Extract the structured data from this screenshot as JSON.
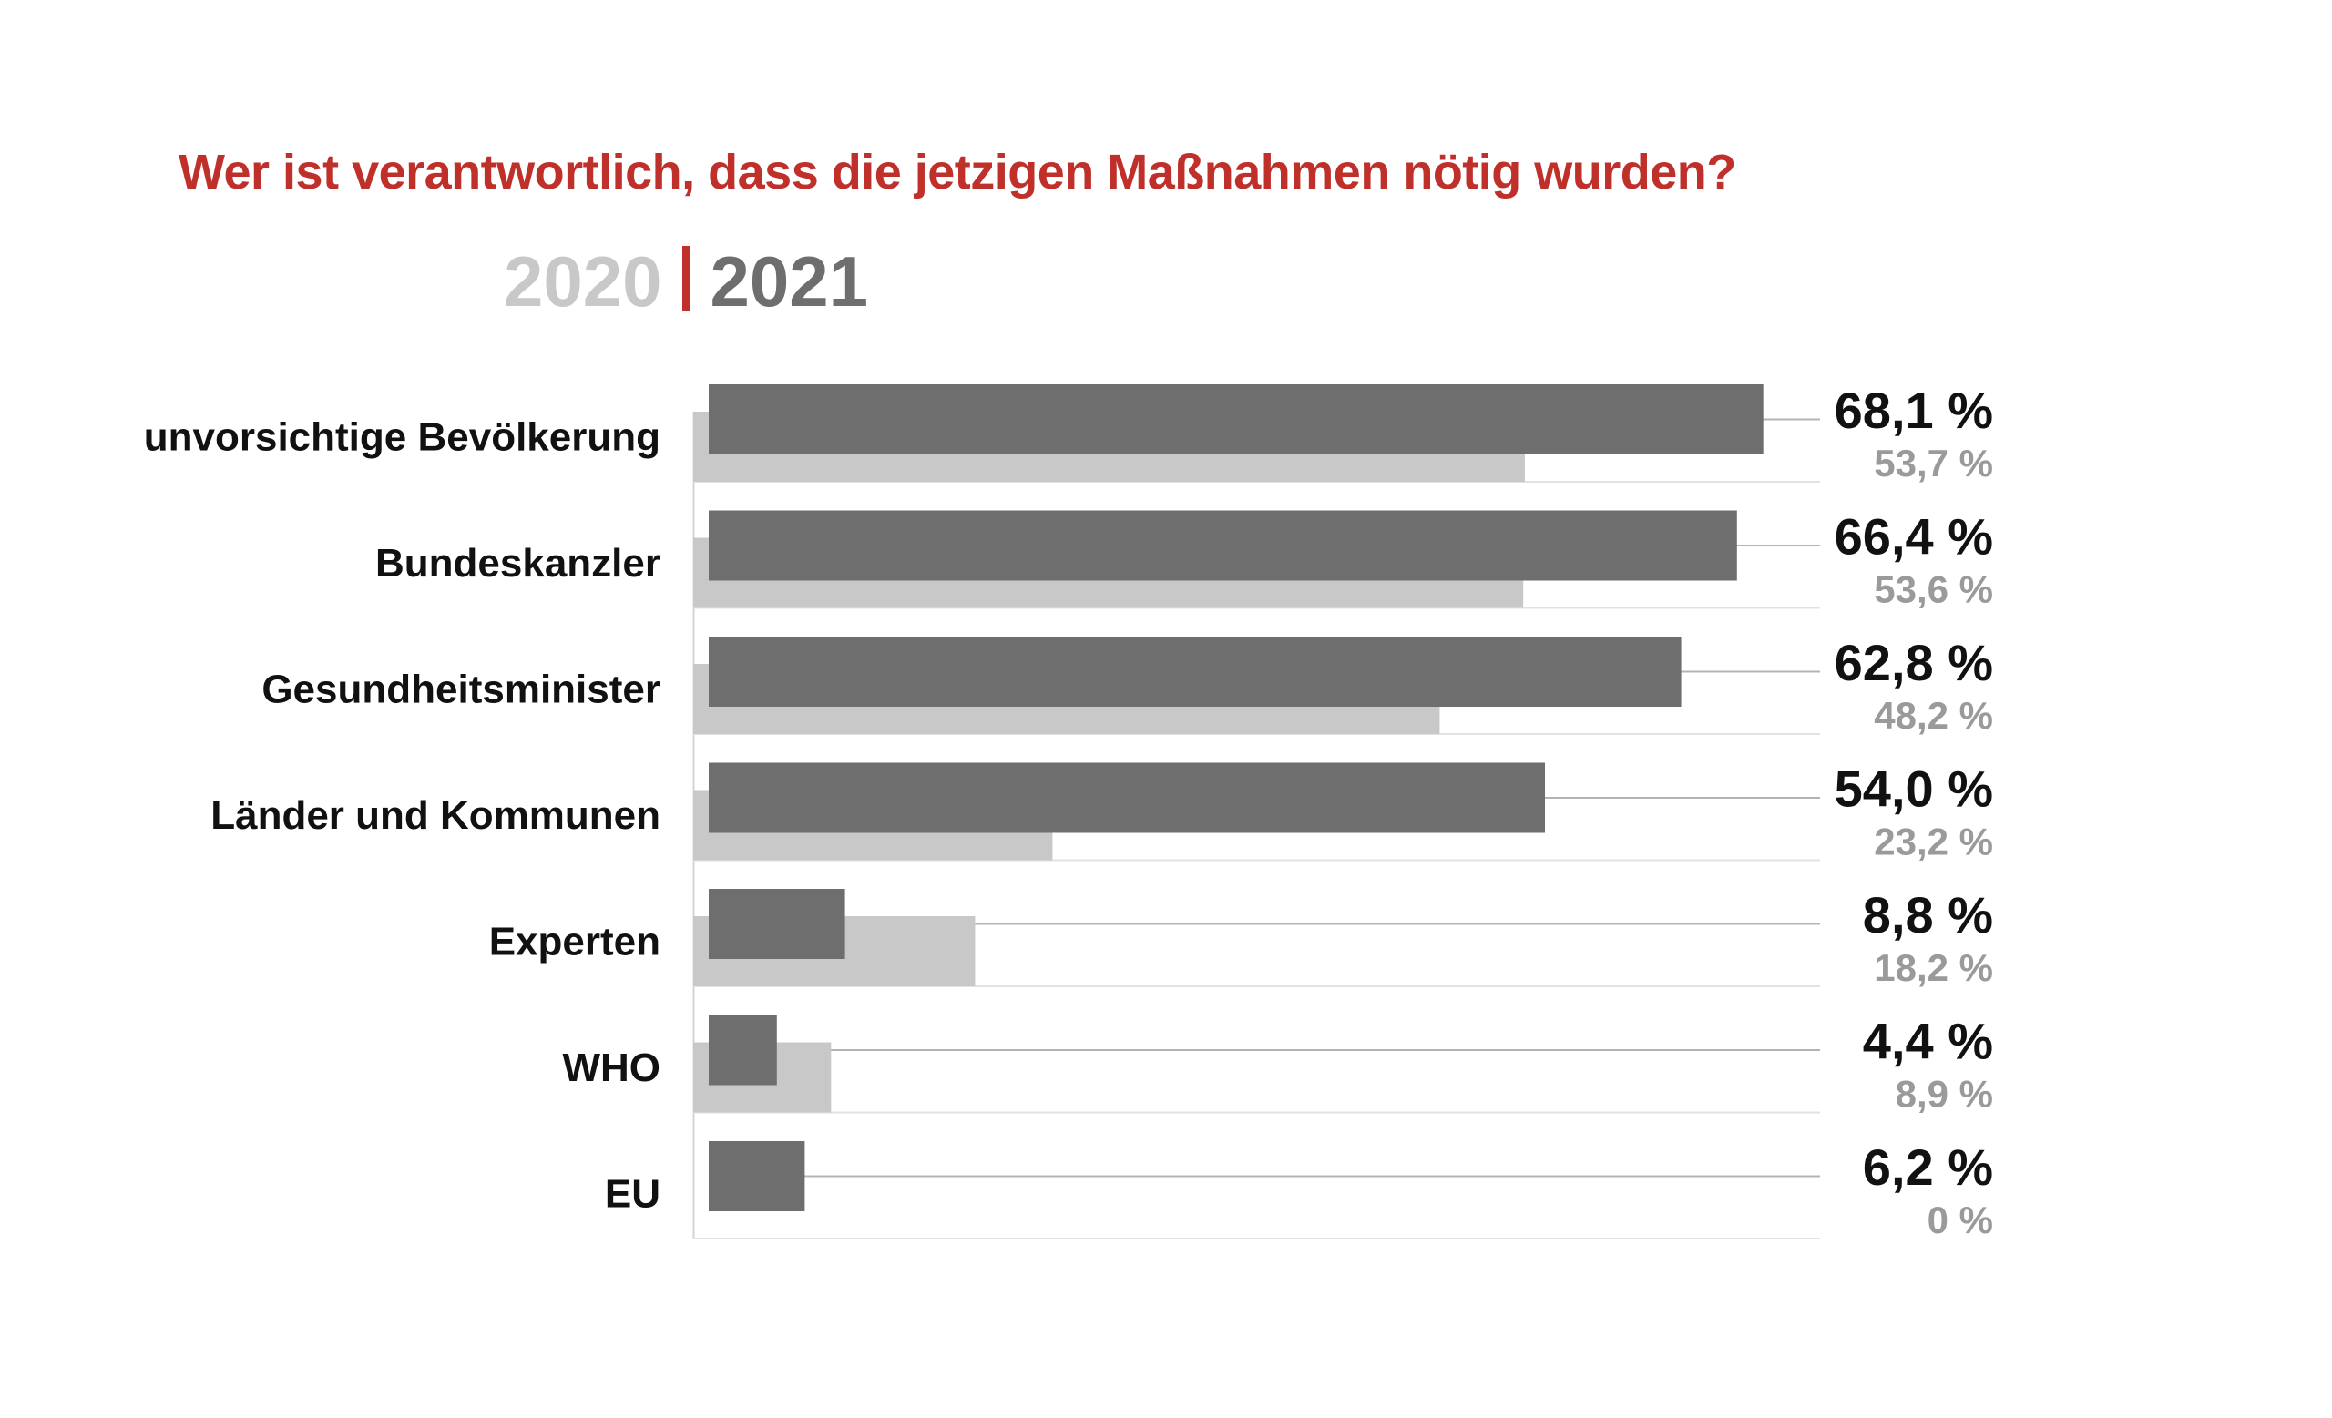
{
  "chart_data": {
    "type": "bar",
    "title": "Wer ist verantwortlich, dass die jetzigen Maßnahmen nötig wurden?",
    "categories": [
      "unvorsichtige Bevölkerung",
      "Bundeskanzler",
      "Gesundheitsminister",
      "Länder und Kommunen",
      "Experten",
      "WHO",
      "EU"
    ],
    "series": [
      {
        "name": "2021",
        "values": [
          68.1,
          66.4,
          62.8,
          54.0,
          8.8,
          4.4,
          6.2
        ],
        "labels": [
          "68,1 %",
          "66,4 %",
          "62,8 %",
          "54,0 %",
          "8,8 %",
          "4,4 %",
          "6,2 %"
        ],
        "color": "#6e6e6e"
      },
      {
        "name": "2020",
        "values": [
          53.7,
          53.6,
          48.2,
          23.2,
          18.2,
          8.9,
          0
        ],
        "labels": [
          "53,7 %",
          "53,6 %",
          "48,2 %",
          "23,2 %",
          "18,2 %",
          "8,9 %",
          "0 %"
        ],
        "color": "#c8c8c8"
      }
    ],
    "legend": {
      "separator_color": "#c0302b",
      "placement": "top-left"
    },
    "xlim": [
      0,
      100
    ],
    "grid": false
  }
}
